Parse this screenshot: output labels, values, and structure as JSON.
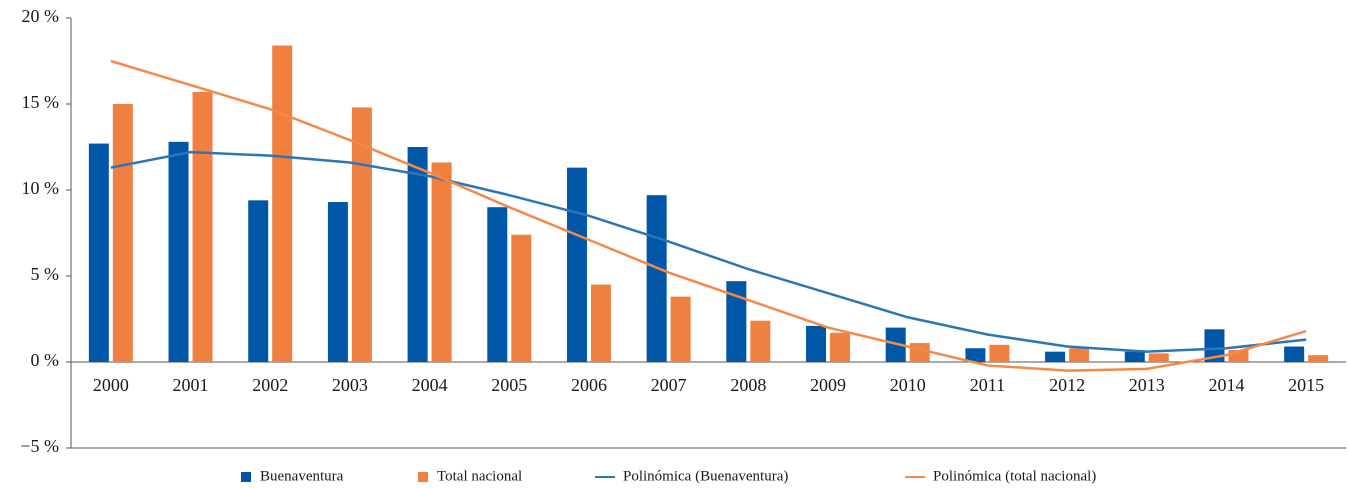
{
  "chart_data": {
    "type": "bar",
    "categories": [
      "2000",
      "2001",
      "2002",
      "2003",
      "2004",
      "2005",
      "2006",
      "2007",
      "2008",
      "2009",
      "2010",
      "2011",
      "2012",
      "2013",
      "2014",
      "2015"
    ],
    "series": [
      {
        "name": "Buenaventura",
        "type": "bar",
        "color": "#0057a8",
        "values": [
          12.7,
          12.8,
          9.4,
          9.3,
          12.5,
          9.0,
          11.3,
          9.7,
          4.7,
          2.1,
          2.0,
          0.8,
          0.6,
          0.6,
          1.9,
          0.9
        ]
      },
      {
        "name": "Total nacional",
        "type": "bar",
        "color": "#f08040",
        "values": [
          15.0,
          15.7,
          18.4,
          14.8,
          11.6,
          7.4,
          4.5,
          3.8,
          2.4,
          1.7,
          1.1,
          1.0,
          0.8,
          0.5,
          0.7,
          0.4
        ]
      },
      {
        "name": "Polinómica (Buenaventura)",
        "type": "line",
        "color": "#2e75b6",
        "values": [
          11.3,
          12.2,
          12.0,
          11.6,
          10.8,
          9.7,
          8.5,
          7.0,
          5.4,
          4.0,
          2.6,
          1.6,
          0.9,
          0.6,
          0.8,
          1.3
        ]
      },
      {
        "name": "Polinómica (total nacional)",
        "type": "line",
        "color": "#f4894a",
        "values": [
          17.5,
          16.1,
          14.7,
          12.9,
          11.0,
          9.0,
          7.1,
          5.2,
          3.6,
          2.0,
          0.9,
          -0.2,
          -0.5,
          -0.4,
          0.4,
          1.8
        ]
      }
    ],
    "ylim": [
      -5,
      20
    ],
    "yticks": [
      {
        "value": -5,
        "label": "−5 %"
      },
      {
        "value": 0,
        "label": "0 %"
      },
      {
        "value": 5,
        "label": "5 %"
      },
      {
        "value": 10,
        "label": "10 %"
      },
      {
        "value": 15,
        "label": "15 %"
      },
      {
        "value": 20,
        "label": "20 %"
      }
    ],
    "legend": "bottom"
  }
}
